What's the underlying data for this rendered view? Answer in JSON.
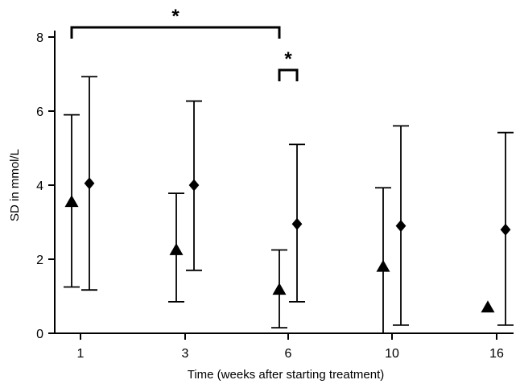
{
  "chart_data": {
    "type": "scatter",
    "xlabel": "Time (weeks after starting treatment)",
    "ylabel": "SD in mmol/L",
    "categories": [
      "1",
      "3",
      "6",
      "10",
      "16"
    ],
    "ylim": [
      0,
      8
    ],
    "yticks": [
      "0",
      "2",
      "4",
      "6",
      "8"
    ],
    "grid": false,
    "series": [
      {
        "marker": "triangle",
        "points": [
          {
            "category": "1",
            "y": 3.55,
            "low": 1.25,
            "high": 5.9
          },
          {
            "category": "3",
            "y": 2.25,
            "low": 0.85,
            "high": 3.78
          },
          {
            "category": "6",
            "y": 1.18,
            "low": 0.15,
            "high": 2.25
          },
          {
            "category": "10",
            "y": 1.8,
            "low": 0.0,
            "high": 3.93
          },
          {
            "category": "16",
            "y": 0.7,
            "low": null,
            "high": null
          }
        ]
      },
      {
        "marker": "diamond",
        "points": [
          {
            "category": "1",
            "y": 4.05,
            "low": 1.17,
            "high": 6.93
          },
          {
            "category": "3",
            "y": 4.0,
            "low": 1.7,
            "high": 6.27
          },
          {
            "category": "6",
            "y": 2.95,
            "low": 0.85,
            "high": 5.1
          },
          {
            "category": "10",
            "y": 2.9,
            "low": 0.22,
            "high": 5.6
          },
          {
            "category": "16",
            "y": 2.8,
            "low": 0.22,
            "high": 5.42
          }
        ]
      }
    ],
    "annotations": [
      {
        "label": "*",
        "type": "bracket",
        "from": {
          "series": 0,
          "category": "1"
        },
        "to": {
          "series": 0,
          "category": "6"
        }
      },
      {
        "label": "*",
        "type": "bracket",
        "from": {
          "series": 0,
          "category": "6"
        },
        "to": {
          "series": 1,
          "category": "6"
        }
      }
    ]
  }
}
